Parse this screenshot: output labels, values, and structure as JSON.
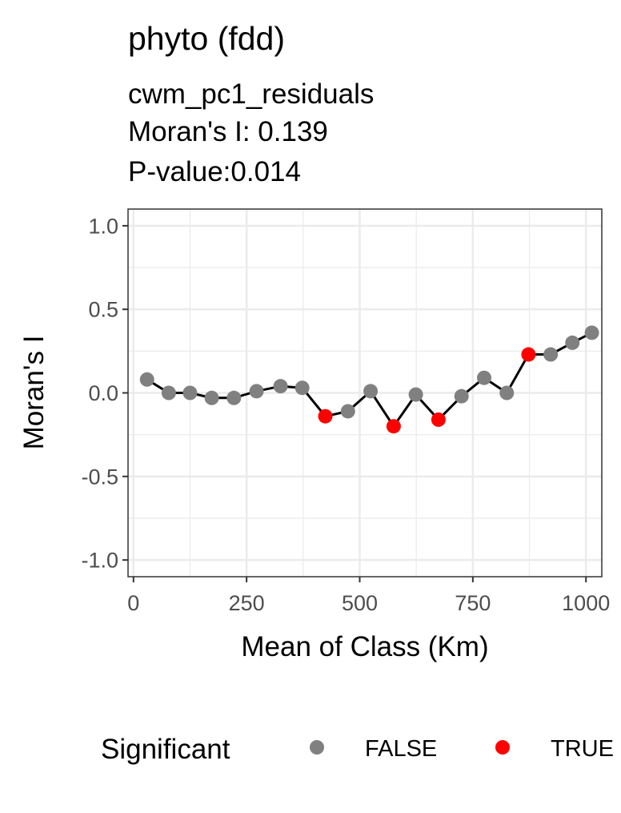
{
  "chart_data": {
    "type": "scatter",
    "title": "phyto (fdd)",
    "subtitle_lines": [
      "cwm_pc1_residuals",
      "Moran's I: 0.139",
      "P-value:0.014"
    ],
    "xlabel": "Mean of Class (Km)",
    "ylabel": "Moran's I",
    "xlim": [
      -12,
      1035
    ],
    "ylim": [
      -1.1,
      1.1
    ],
    "x_ticks": [
      0,
      250,
      500,
      750,
      1000
    ],
    "x_tick_labels": [
      "0",
      "250",
      "500",
      "750",
      "1000"
    ],
    "y_ticks": [
      1.0,
      0.5,
      0.0,
      -0.5,
      -1.0
    ],
    "y_tick_labels": [
      "1.0",
      "0.5",
      "0.0",
      "-0.5",
      "-1.0"
    ],
    "grid": true,
    "line_color": "#000000",
    "points": [
      {
        "x": 30,
        "y": 0.08,
        "significant": false
      },
      {
        "x": 78,
        "y": 0.0,
        "significant": false
      },
      {
        "x": 125,
        "y": 0.0,
        "significant": false
      },
      {
        "x": 173,
        "y": -0.03,
        "significant": false
      },
      {
        "x": 222,
        "y": -0.03,
        "significant": false
      },
      {
        "x": 272,
        "y": 0.01,
        "significant": false
      },
      {
        "x": 325,
        "y": 0.04,
        "significant": false
      },
      {
        "x": 373,
        "y": 0.03,
        "significant": false
      },
      {
        "x": 424,
        "y": -0.14,
        "significant": true
      },
      {
        "x": 474,
        "y": -0.11,
        "significant": false
      },
      {
        "x": 524,
        "y": 0.01,
        "significant": false
      },
      {
        "x": 575,
        "y": -0.2,
        "significant": true
      },
      {
        "x": 624,
        "y": -0.01,
        "significant": false
      },
      {
        "x": 674,
        "y": -0.16,
        "significant": true
      },
      {
        "x": 725,
        "y": -0.02,
        "significant": false
      },
      {
        "x": 775,
        "y": 0.09,
        "significant": false
      },
      {
        "x": 825,
        "y": 0.0,
        "significant": false
      },
      {
        "x": 873,
        "y": 0.23,
        "significant": true
      },
      {
        "x": 922,
        "y": 0.23,
        "significant": false
      },
      {
        "x": 970,
        "y": 0.3,
        "significant": false
      },
      {
        "x": 1013,
        "y": 0.36,
        "significant": false
      }
    ],
    "legend": {
      "title": "Significant",
      "position": "bottom",
      "entries": [
        {
          "label": "FALSE",
          "color": "#808080"
        },
        {
          "label": "TRUE",
          "color": "#ff0000"
        }
      ]
    }
  }
}
